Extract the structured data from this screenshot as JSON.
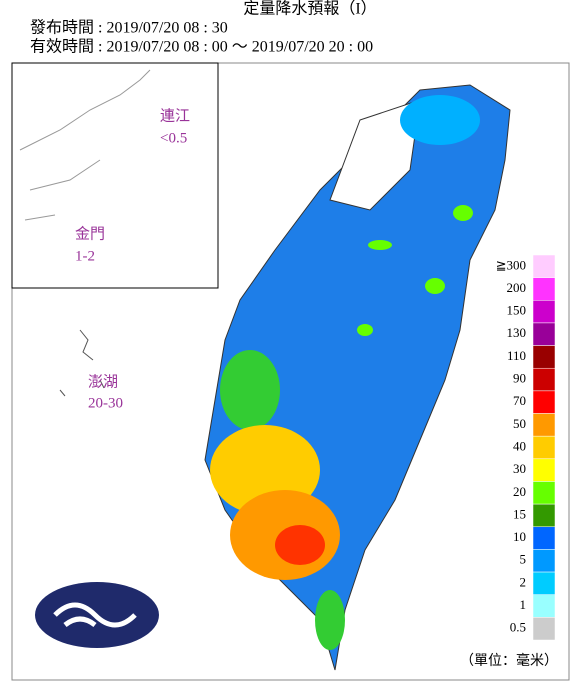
{
  "header": {
    "title": "定量降水預報（I）",
    "issued": "發布時間 : 2019/07/20 08 : 30",
    "valid": "有效時間 : 2019/07/20 08 : 00 ～ 2019/07/20 20 : 00"
  },
  "islands": [
    {
      "name": "連江",
      "value": "<0.5"
    },
    {
      "name": "金門",
      "value": "1-2"
    },
    {
      "name": "澎湖",
      "value": "20-30"
    }
  ],
  "legend": {
    "unit": "（單位：毫米）",
    "items": [
      {
        "label": "≧300",
        "color": "#ffccff"
      },
      {
        "label": "200",
        "color": "#ff33ff"
      },
      {
        "label": "150",
        "color": "#cc00cc"
      },
      {
        "label": "130",
        "color": "#990099"
      },
      {
        "label": "110",
        "color": "#990000"
      },
      {
        "label": "90",
        "color": "#cc0000"
      },
      {
        "label": "70",
        "color": "#ff0000"
      },
      {
        "label": "50",
        "color": "#ff9900"
      },
      {
        "label": "40",
        "color": "#ffcc00"
      },
      {
        "label": "30",
        "color": "#ffff00"
      },
      {
        "label": "20",
        "color": "#66ff00"
      },
      {
        "label": "15",
        "color": "#339900"
      },
      {
        "label": "10",
        "color": "#0066ff"
      },
      {
        "label": "5",
        "color": "#0099ff"
      },
      {
        "label": "2",
        "color": "#00ccff"
      },
      {
        "label": "1",
        "color": "#99ffff"
      },
      {
        "label": "0.5",
        "color": "#cccccc"
      }
    ]
  }
}
